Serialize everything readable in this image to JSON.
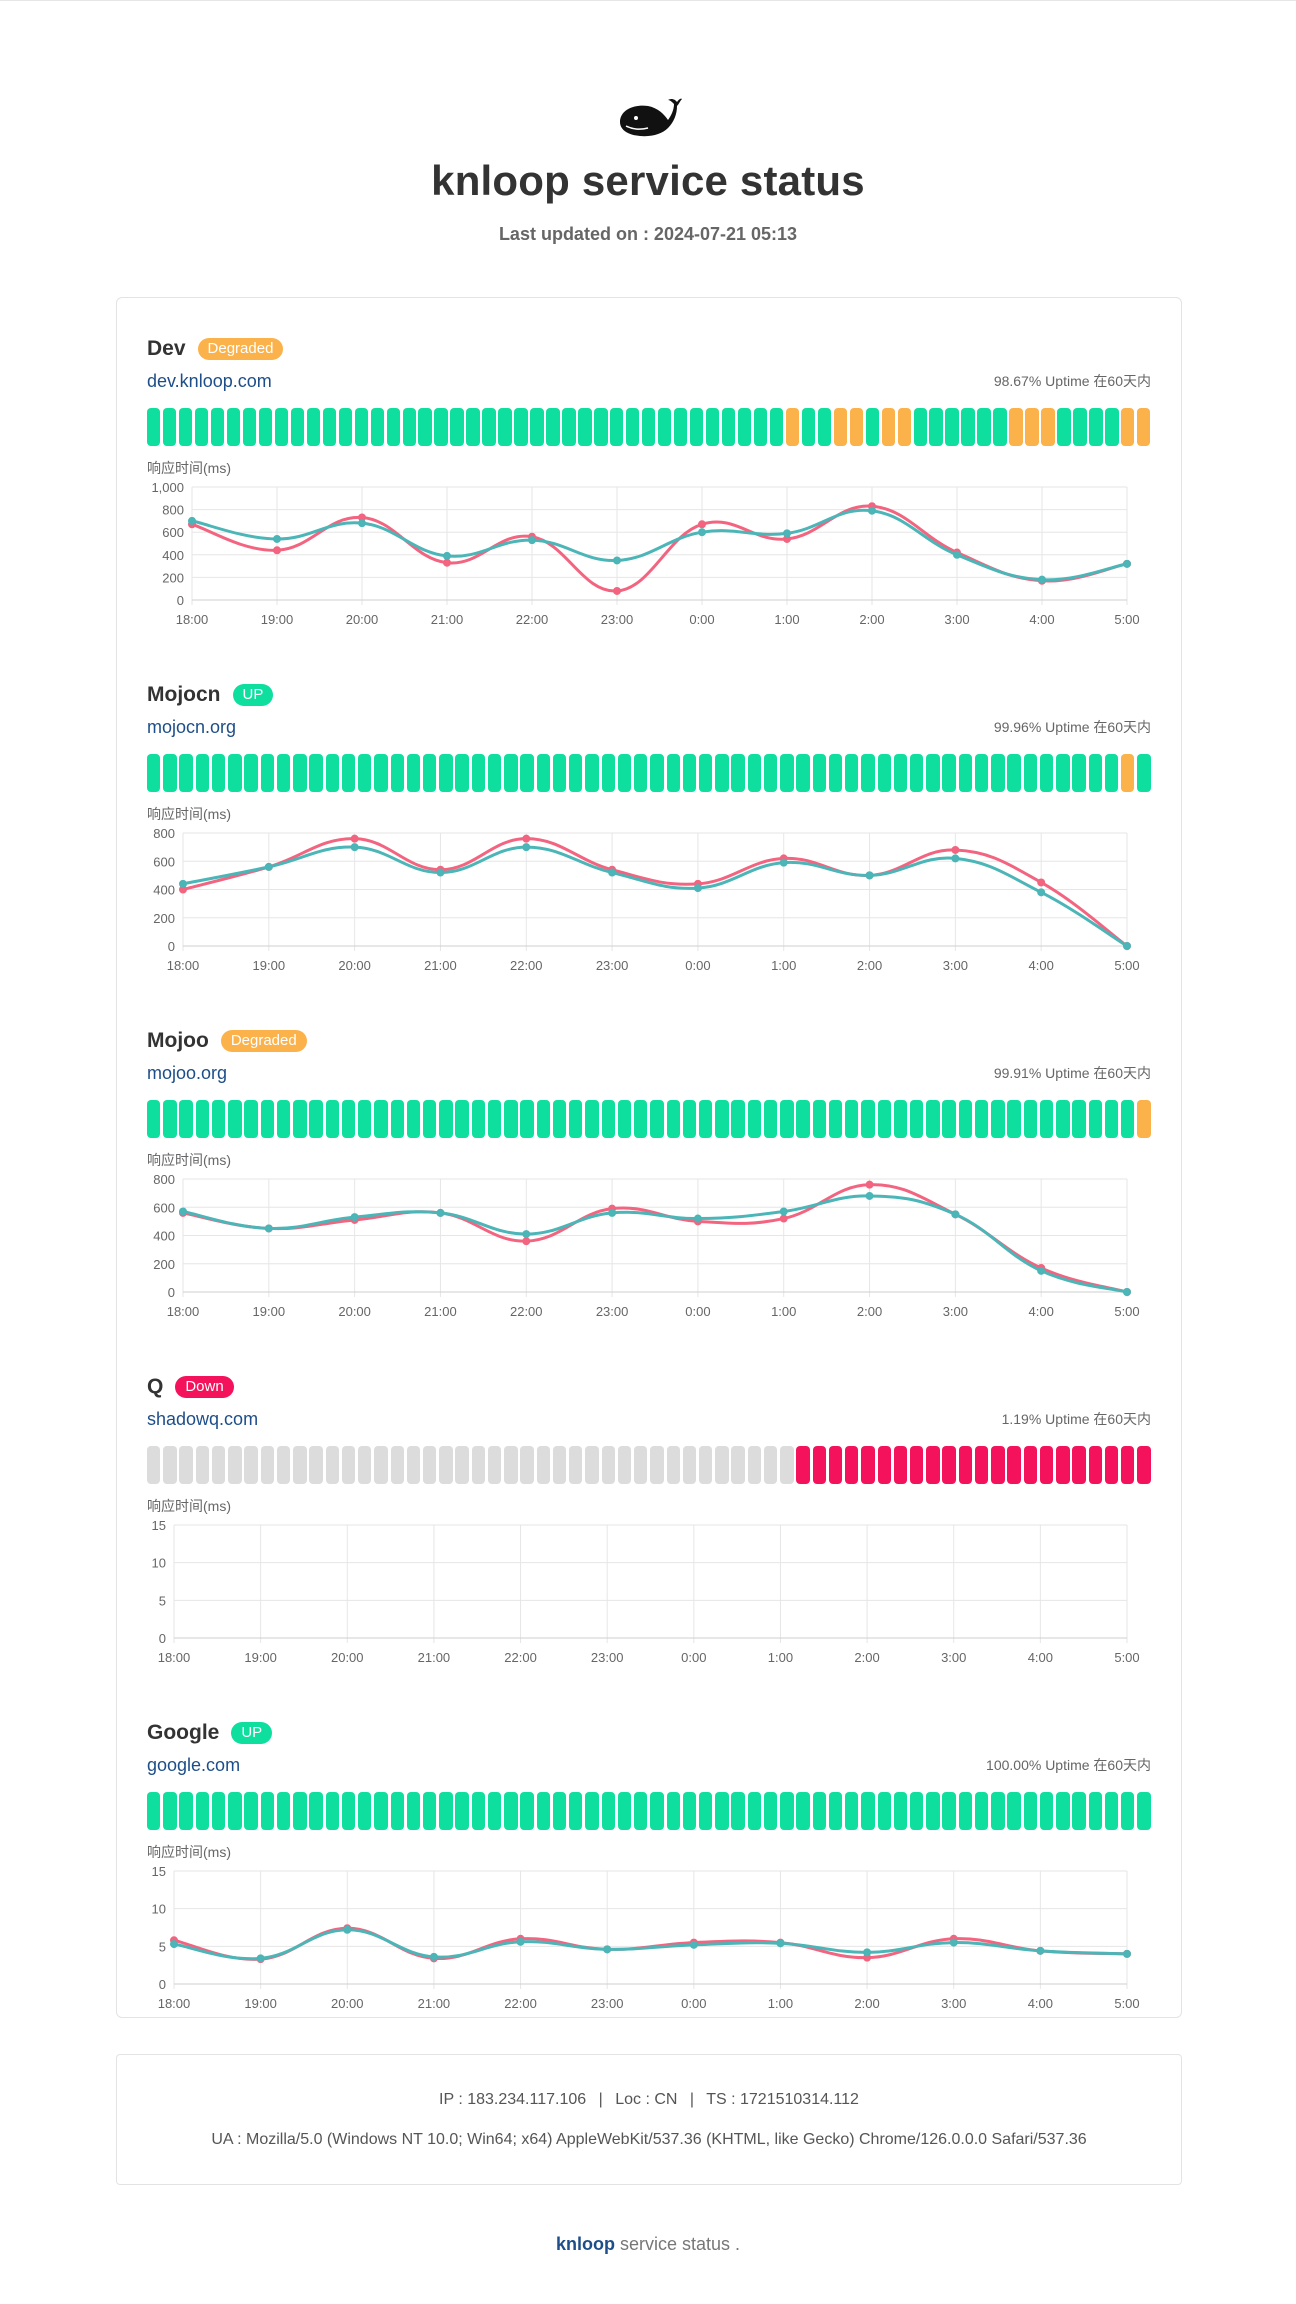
{
  "page": {
    "title": "knloop service status",
    "last_updated": "Last updated on : 2024-07-21 05:13",
    "logo_icon": "whale-icon"
  },
  "colors": {
    "up": "#0fdf9e",
    "degraded": "#fbb24b",
    "down": "#f5125c",
    "empty": "#dcdcdc",
    "series_a": "#f2647f",
    "series_b": "#4bb5b7",
    "link": "#1d4e89"
  },
  "chart_label": "响应时间(ms)",
  "services": [
    {
      "name": "Dev",
      "status": "Degraded",
      "status_color": "#fbb24b",
      "url": "dev.knloop.com",
      "uptime": "98.67% Uptime 在60天内",
      "bars": "uuuuuuuuuuuuuuuuuuuuuuuuuuuuuuuuuuuuuuuuduuddudduuuuuuddduuuudd",
      "chart_data": {
        "type": "line",
        "x": [
          "18:00",
          "19:00",
          "20:00",
          "21:00",
          "22:00",
          "23:00",
          "0:00",
          "1:00",
          "2:00",
          "3:00",
          "4:00",
          "5:00"
        ],
        "yticks": [
          0,
          200,
          400,
          600,
          800,
          1000
        ],
        "ytick_labels": [
          "0",
          "200",
          "400",
          "600",
          "800",
          "1,000"
        ],
        "ylim": [
          0,
          1000
        ],
        "series": [
          {
            "color": "#f2647f",
            "values": [
              670,
              440,
              730,
              330,
              560,
              80,
              670,
              540,
              830,
              420,
              170,
              320
            ]
          },
          {
            "color": "#4bb5b7",
            "values": [
              700,
              540,
              680,
              390,
              530,
              350,
              600,
              590,
              790,
              400,
              180,
              320
            ]
          }
        ]
      }
    },
    {
      "name": "Mojocn",
      "status": "UP",
      "status_color": "#0fdf9e",
      "url": "mojocn.org",
      "uptime": "99.96% Uptime 在60天内",
      "bars": "uuuuuuuuuuuuuuuuuuuuuuuuuuuuuuuuuuuuuuuuuuuuuuuuuuuuuuuuuuuudu",
      "chart_data": {
        "type": "line",
        "x": [
          "18:00",
          "19:00",
          "20:00",
          "21:00",
          "22:00",
          "23:00",
          "0:00",
          "1:00",
          "2:00",
          "3:00",
          "4:00",
          "5:00"
        ],
        "yticks": [
          0,
          200,
          400,
          600,
          800
        ],
        "ytick_labels": [
          "0",
          "200",
          "400",
          "600",
          "800"
        ],
        "ylim": [
          0,
          800
        ],
        "series": [
          {
            "color": "#f2647f",
            "values": [
              400,
              560,
              760,
              540,
              760,
              540,
              440,
              620,
              500,
              680,
              450,
              0
            ]
          },
          {
            "color": "#4bb5b7",
            "values": [
              440,
              560,
              700,
              520,
              700,
              520,
              410,
              590,
              500,
              620,
              380,
              0
            ]
          }
        ]
      }
    },
    {
      "name": "Mojoo",
      "status": "Degraded",
      "status_color": "#fbb24b",
      "url": "mojoo.org",
      "uptime": "99.91% Uptime 在60天内",
      "bars": "uuuuuuuuuuuuuuuuuuuuuuuuuuuuuuuuuuuuuuuuuuuuuuuuuuuuuuuuuuuuud",
      "chart_data": {
        "type": "line",
        "x": [
          "18:00",
          "19:00",
          "20:00",
          "21:00",
          "22:00",
          "23:00",
          "0:00",
          "1:00",
          "2:00",
          "3:00",
          "4:00",
          "5:00"
        ],
        "yticks": [
          0,
          200,
          400,
          600,
          800
        ],
        "ytick_labels": [
          "0",
          "200",
          "400",
          "600",
          "800"
        ],
        "ylim": [
          0,
          800
        ],
        "series": [
          {
            "color": "#f2647f",
            "values": [
              560,
              450,
              510,
              560,
              360,
              590,
              500,
              520,
              760,
              550,
              170,
              0
            ]
          },
          {
            "color": "#4bb5b7",
            "values": [
              570,
              450,
              530,
              560,
              410,
              560,
              520,
              570,
              680,
              550,
              150,
              0
            ]
          }
        ]
      }
    },
    {
      "name": "Q",
      "status": "Down",
      "status_color": "#f5125c",
      "url": "shadowq.com",
      "uptime": "1.19% Uptime 在60天内",
      "bars": "eeeeeeeeeeeeeeeeeeeeeeeeeeeeeeeeeeeeeeeexxxxxxxxxxxxxxxxxxxxxx",
      "chart_data": {
        "type": "line",
        "x": [
          "18:00",
          "19:00",
          "20:00",
          "21:00",
          "22:00",
          "23:00",
          "0:00",
          "1:00",
          "2:00",
          "3:00",
          "4:00",
          "5:00"
        ],
        "yticks": [
          0,
          5,
          10,
          15
        ],
        "ytick_labels": [
          "0",
          "5",
          "10",
          "15"
        ],
        "ylim": [
          0,
          15
        ],
        "series": []
      }
    },
    {
      "name": "Google",
      "status": "UP",
      "status_color": "#0fdf9e",
      "url": "google.com",
      "uptime": "100.00% Uptime 在60天内",
      "bars": "uuuuuuuuuuuuuuuuuuuuuuuuuuuuuuuuuuuuuuuuuuuuuuuuuuuuuuuuuuuuuu",
      "chart_data": {
        "type": "line",
        "x": [
          "18:00",
          "19:00",
          "20:00",
          "21:00",
          "22:00",
          "23:00",
          "0:00",
          "1:00",
          "2:00",
          "3:00",
          "4:00",
          "5:00"
        ],
        "yticks": [
          0,
          5,
          10,
          15
        ],
        "ytick_labels": [
          "0",
          "5",
          "10",
          "15"
        ],
        "ylim": [
          0,
          15
        ],
        "series": [
          {
            "color": "#f2647f",
            "values": [
              5.8,
              3.3,
              7.4,
              3.4,
              6.0,
              4.6,
              5.5,
              5.5,
              3.5,
              6.0,
              4.4,
              4.0
            ]
          },
          {
            "color": "#4bb5b7",
            "values": [
              5.3,
              3.4,
              7.2,
              3.6,
              5.6,
              4.6,
              5.2,
              5.4,
              4.2,
              5.5,
              4.4,
              4.0
            ]
          }
        ]
      }
    }
  ],
  "footer": {
    "ip": "IP : 183.234.117.106",
    "loc": "Loc : CN",
    "ts": "TS : 1721510314.112",
    "sep": "|",
    "ua": "UA : Mozilla/5.0 (Windows NT 10.0; Win64; x64) AppleWebKit/537.36 (KHTML, like Gecko) Chrome/126.0.0.0 Safari/537.36"
  },
  "brand": {
    "name": "knloop",
    "suffix": " service status ."
  }
}
